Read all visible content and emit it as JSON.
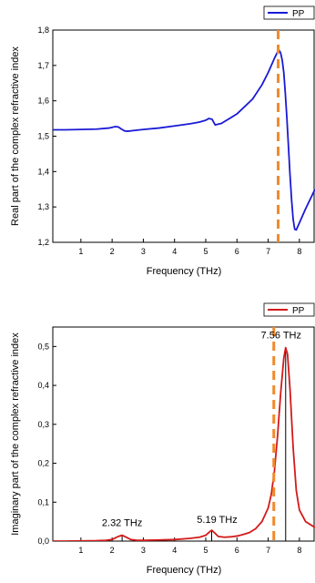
{
  "chart_data": [
    {
      "type": "line",
      "xlabel": "Frequency (THz)",
      "ylabel": "Real part of the complex refractive index",
      "xlim": [
        0.1,
        8.5
      ],
      "ylim": [
        1.2,
        1.8
      ],
      "xticks": [
        1,
        2,
        3,
        4,
        5,
        6,
        7,
        8
      ],
      "xtick_labels": [
        "1",
        "2",
        "3",
        "4",
        "5",
        "6",
        "7",
        "8"
      ],
      "yticks": [
        1.2,
        1.3,
        1.4,
        1.5,
        1.6,
        1.7,
        1.8
      ],
      "ytick_labels": [
        "1,2",
        "1,3",
        "1,4",
        "1,5",
        "1,6",
        "1,7",
        "1,8"
      ],
      "grid": false,
      "legend": "top-right",
      "colors": {
        "series": "#1a1ad6",
        "marker_line": "#f08a2c"
      },
      "series": [
        {
          "name": "PP",
          "x": [
            0.1,
            0.5,
            1.0,
            1.5,
            1.9,
            2.1,
            2.2,
            2.3,
            2.4,
            2.5,
            2.7,
            3.0,
            3.5,
            4.0,
            4.5,
            4.8,
            5.0,
            5.1,
            5.2,
            5.3,
            5.5,
            6.0,
            6.5,
            6.8,
            7.0,
            7.1,
            7.2,
            7.3,
            7.35,
            7.4,
            7.45,
            7.5,
            7.55,
            7.6,
            7.65,
            7.7,
            7.75,
            7.8,
            7.85,
            7.9,
            8.0,
            8.2,
            8.5
          ],
          "y": [
            1.518,
            1.518,
            1.519,
            1.52,
            1.523,
            1.527,
            1.526,
            1.52,
            1.515,
            1.514,
            1.516,
            1.519,
            1.523,
            1.529,
            1.535,
            1.54,
            1.545,
            1.55,
            1.548,
            1.532,
            1.536,
            1.563,
            1.605,
            1.645,
            1.68,
            1.7,
            1.72,
            1.738,
            1.743,
            1.735,
            1.715,
            1.68,
            1.62,
            1.55,
            1.47,
            1.39,
            1.32,
            1.265,
            1.237,
            1.235,
            1.255,
            1.295,
            1.35
          ]
        }
      ],
      "vline_x": 7.32
    },
    {
      "type": "line",
      "xlabel": "Frequency (THz)",
      "ylabel": "Imaginary part of the complex refractive index",
      "xlim": [
        0.1,
        8.5
      ],
      "ylim": [
        0,
        0.55
      ],
      "xticks": [
        1,
        2,
        3,
        4,
        5,
        6,
        7,
        8
      ],
      "xtick_labels": [
        "1",
        "2",
        "3",
        "4",
        "5",
        "6",
        "7",
        "8"
      ],
      "yticks": [
        0,
        0.1,
        0.2,
        0.3,
        0.4,
        0.5
      ],
      "ytick_labels": [
        "0,0",
        "0,1",
        "0,2",
        "0,3",
        "0,4",
        "0,5"
      ],
      "grid": false,
      "legend": "top-right",
      "colors": {
        "series": "#d41a1a",
        "marker_line": "#f08a2c",
        "peak_lines": "#000000"
      },
      "series": [
        {
          "name": "PP",
          "x": [
            0.1,
            0.5,
            1.0,
            1.5,
            1.8,
            2.0,
            2.1,
            2.2,
            2.32,
            2.45,
            2.6,
            2.8,
            3.0,
            3.5,
            4.0,
            4.5,
            4.8,
            5.0,
            5.1,
            5.19,
            5.3,
            5.4,
            5.6,
            5.8,
            6.0,
            6.2,
            6.4,
            6.6,
            6.8,
            7.0,
            7.1,
            7.2,
            7.3,
            7.4,
            7.5,
            7.56,
            7.62,
            7.7,
            7.8,
            7.9,
            8.0,
            8.2,
            8.5
          ],
          "y": [
            0.0,
            0.0,
            0.0005,
            0.001,
            0.002,
            0.004,
            0.008,
            0.012,
            0.015,
            0.01,
            0.004,
            0.002,
            0.002,
            0.003,
            0.004,
            0.007,
            0.01,
            0.015,
            0.022,
            0.028,
            0.02,
            0.012,
            0.01,
            0.011,
            0.013,
            0.017,
            0.022,
            0.032,
            0.05,
            0.085,
            0.12,
            0.18,
            0.27,
            0.38,
            0.47,
            0.497,
            0.48,
            0.39,
            0.24,
            0.13,
            0.08,
            0.05,
            0.035
          ]
        }
      ],
      "vline_x": 7.18,
      "peaks": [
        {
          "x": 2.32,
          "label": "2.32 THz"
        },
        {
          "x": 5.19,
          "label": "5.19 THz"
        },
        {
          "x": 7.56,
          "label": "7.56 THz"
        }
      ]
    }
  ]
}
